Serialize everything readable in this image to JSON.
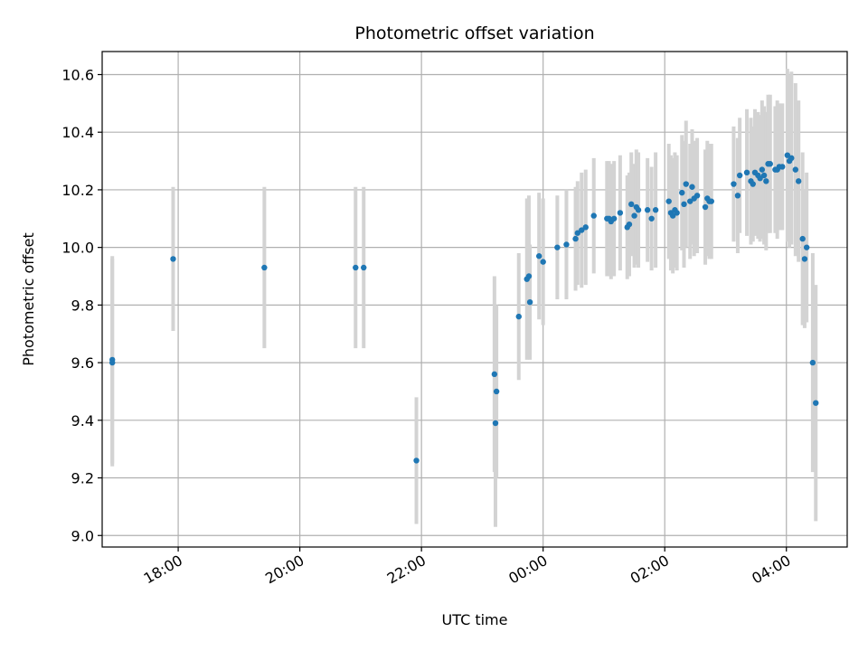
{
  "chart_data": {
    "type": "scatter",
    "title": "Photometric offset variation",
    "xlabel": "UTC time",
    "ylabel": "Photometric offset",
    "x_ticks": [
      "18:00",
      "20:00",
      "22:00",
      "00:00",
      "02:00",
      "04:00"
    ],
    "y_ticks": [
      "9.0",
      "9.2",
      "9.4",
      "9.6",
      "9.8",
      "10.0",
      "10.2",
      "10.4",
      "10.6"
    ],
    "xlim": [
      "16:45",
      "05:00"
    ],
    "ylim": [
      8.96,
      10.68
    ],
    "grid": true,
    "colors": {
      "marker": "#1f77b4",
      "errorbar": "#d3d3d3",
      "grid": "#b0b0b0"
    },
    "series": [
      {
        "x": [
          "16:55",
          "16:55",
          "17:55",
          "19:25",
          "20:55",
          "21:03",
          "21:55",
          "23:12",
          "23:13",
          "23:14",
          "23:36",
          "23:44",
          "23:46",
          "23:47",
          "23:56",
          "00:00",
          "00:14",
          "00:23",
          "00:32",
          "00:34",
          "00:38",
          "00:42",
          "00:50",
          "01:03",
          "01:05",
          "01:07",
          "01:10",
          "01:16",
          "01:23",
          "01:25",
          "01:27",
          "01:30",
          "01:32",
          "01:34",
          "01:43",
          "01:47",
          "01:51",
          "02:04",
          "02:06",
          "02:08",
          "02:10",
          "02:12",
          "02:17",
          "02:19",
          "02:21",
          "02:25",
          "02:27",
          "02:29",
          "02:32",
          "02:40",
          "02:42",
          "02:44",
          "02:46",
          "03:08",
          "03:12",
          "03:14",
          "03:21",
          "03:25",
          "03:27",
          "03:29",
          "03:32",
          "03:34",
          "03:36",
          "03:38",
          "03:40",
          "03:42",
          "03:44",
          "03:49",
          "03:51",
          "03:53",
          "03:56",
          "04:01",
          "04:03",
          "04:05",
          "04:09",
          "04:12",
          "04:16",
          "04:18",
          "04:20",
          "04:26",
          "04:29"
        ],
        "y": [
          9.61,
          9.6,
          9.96,
          9.93,
          9.93,
          9.93,
          9.26,
          9.56,
          9.39,
          9.5,
          9.76,
          9.89,
          9.9,
          9.81,
          9.97,
          9.95,
          10.0,
          10.01,
          10.03,
          10.05,
          10.06,
          10.07,
          10.11,
          10.1,
          10.1,
          10.09,
          10.1,
          10.12,
          10.07,
          10.08,
          10.15,
          10.11,
          10.14,
          10.13,
          10.13,
          10.1,
          10.13,
          10.16,
          10.12,
          10.11,
          10.13,
          10.12,
          10.19,
          10.15,
          10.22,
          10.16,
          10.21,
          10.17,
          10.18,
          10.14,
          10.17,
          10.16,
          10.16,
          10.22,
          10.18,
          10.25,
          10.26,
          10.23,
          10.22,
          10.26,
          10.25,
          10.24,
          10.27,
          10.25,
          10.23,
          10.29,
          10.29,
          10.27,
          10.27,
          10.28,
          10.28,
          10.32,
          10.3,
          10.31,
          10.27,
          10.23,
          10.03,
          9.96,
          10.0,
          9.6,
          9.46
        ],
        "err": [
          0.36,
          0.36,
          0.25,
          0.28,
          0.28,
          0.28,
          0.22,
          0.34,
          0.36,
          0.3,
          0.22,
          0.28,
          0.28,
          0.2,
          0.22,
          0.22,
          0.18,
          0.19,
          0.18,
          0.18,
          0.2,
          0.2,
          0.2,
          0.2,
          0.2,
          0.2,
          0.2,
          0.2,
          0.18,
          0.18,
          0.18,
          0.18,
          0.2,
          0.2,
          0.18,
          0.18,
          0.2,
          0.2,
          0.2,
          0.2,
          0.2,
          0.2,
          0.2,
          0.22,
          0.22,
          0.2,
          0.2,
          0.2,
          0.2,
          0.2,
          0.2,
          0.2,
          0.2,
          0.2,
          0.2,
          0.2,
          0.22,
          0.22,
          0.2,
          0.22,
          0.22,
          0.22,
          0.24,
          0.24,
          0.24,
          0.24,
          0.24,
          0.22,
          0.24,
          0.22,
          0.22,
          0.3,
          0.3,
          0.3,
          0.3,
          0.28,
          0.3,
          0.24,
          0.26,
          0.38,
          0.41
        ]
      }
    ]
  }
}
